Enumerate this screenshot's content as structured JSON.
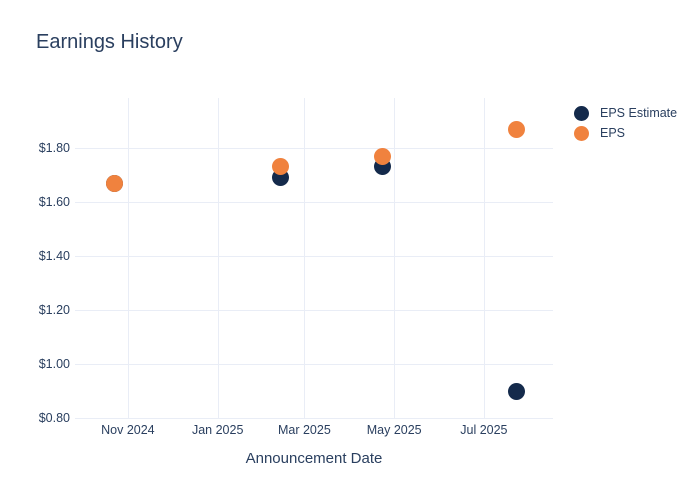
{
  "title": "Earnings History",
  "colors": {
    "background": "#ffffff",
    "text": "#2a3f5f",
    "grid": "#e9edf6",
    "eps_estimate": "#142a4b",
    "eps": "#f0823e"
  },
  "chart_data": {
    "type": "scatter",
    "title": "Earnings History",
    "xlabel": "Announcement Date",
    "ylabel": "",
    "grid": true,
    "legend_position": "right",
    "x_axis": {
      "type": "date",
      "domain": [
        "2024-09-26",
        "2025-08-17"
      ],
      "ticks": [
        {
          "label": "Nov 2024",
          "date": "2024-11-01"
        },
        {
          "label": "Jan 2025",
          "date": "2025-01-01"
        },
        {
          "label": "Mar 2025",
          "date": "2025-03-01"
        },
        {
          "label": "May 2025",
          "date": "2025-05-01"
        },
        {
          "label": "Jul 2025",
          "date": "2025-07-01"
        }
      ]
    },
    "y_axis": {
      "range": [
        0.8,
        1.985
      ],
      "ticks": [
        {
          "label": "$0.80",
          "value": 0.8
        },
        {
          "label": "$1.00",
          "value": 1.0
        },
        {
          "label": "$1.20",
          "value": 1.2
        },
        {
          "label": "$1.40",
          "value": 1.4
        },
        {
          "label": "$1.60",
          "value": 1.6
        },
        {
          "label": "$1.80",
          "value": 1.8
        }
      ]
    },
    "series": [
      {
        "name": "EPS Estimate",
        "color": "#142a4b",
        "marker_size": 17,
        "points": [
          {
            "date": "2024-10-23",
            "value": 1.67
          },
          {
            "date": "2025-02-13",
            "value": 1.69
          },
          {
            "date": "2025-04-23",
            "value": 1.73
          },
          {
            "date": "2025-07-23",
            "value": 0.9
          }
        ]
      },
      {
        "name": "EPS",
        "color": "#f0823e",
        "marker_size": 17,
        "points": [
          {
            "date": "2024-10-23",
            "value": 1.67
          },
          {
            "date": "2025-02-13",
            "value": 1.73
          },
          {
            "date": "2025-04-23",
            "value": 1.77
          },
          {
            "date": "2025-07-23",
            "value": 1.87
          }
        ]
      }
    ]
  }
}
